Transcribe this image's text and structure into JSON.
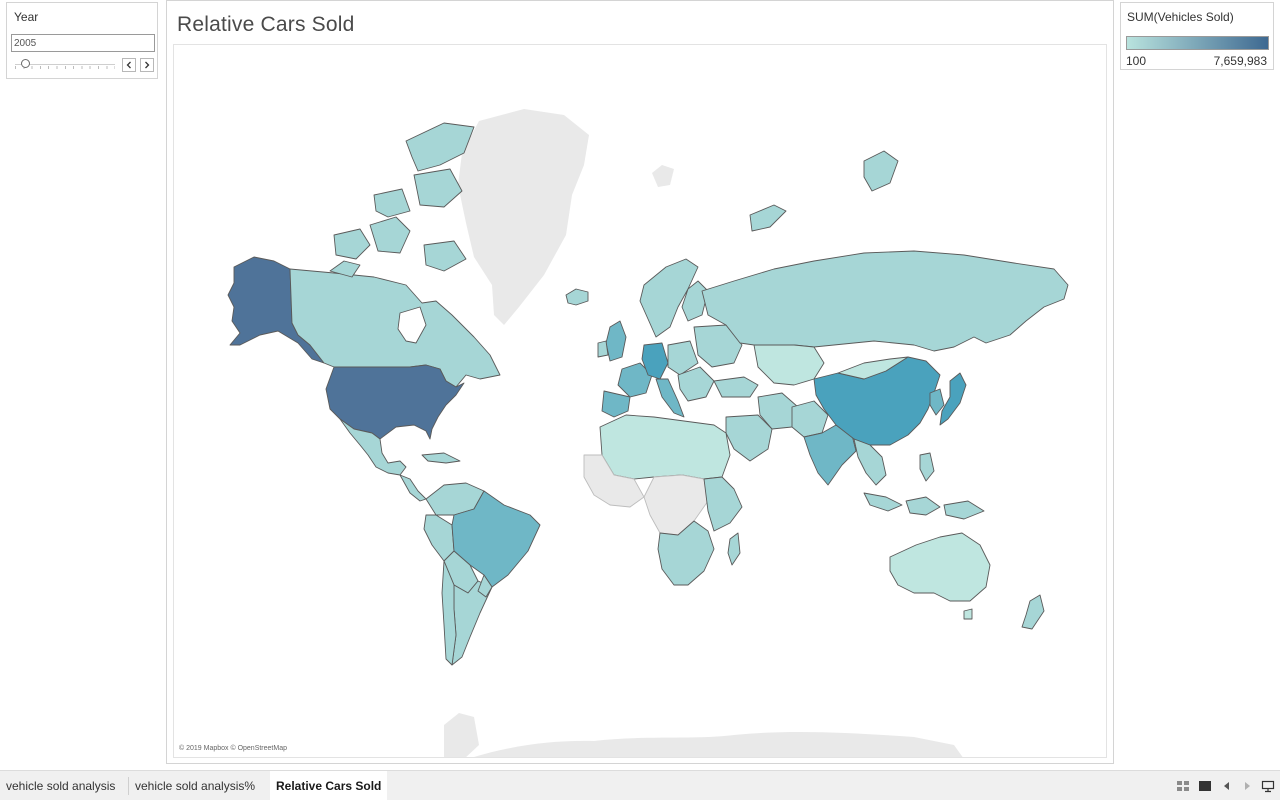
{
  "filter": {
    "title": "Year",
    "value": "2005",
    "slider_position": 0.1
  },
  "map": {
    "title": "Relative Cars Sold",
    "attribution": "© 2019 Mapbox © OpenStreetMap"
  },
  "legend": {
    "title": "SUM(Vehicles Sold)",
    "min_label": "100",
    "max_label": "7,659,983",
    "color_low": "#b9e3de",
    "color_high": "#3e6991"
  },
  "colors": {
    "no_data": "#e9e9e9",
    "very_low": "#bfe6e0",
    "low": "#a6d6d6",
    "mid": "#6fb7c6",
    "mid_high": "#4aa2bd",
    "high": "#4f7399",
    "border": "#5a5a5a"
  },
  "tabs": [
    {
      "label": "vehicle sold analysis",
      "active": false
    },
    {
      "label": "vehicle sold analysis%",
      "active": false
    },
    {
      "label": "Relative Cars Sold",
      "active": true
    }
  ],
  "toolbar_icons": [
    "grid-view-icon",
    "filmstrip-view-icon",
    "previous-sheet-icon",
    "next-sheet-icon",
    "presentation-mode-icon"
  ]
}
